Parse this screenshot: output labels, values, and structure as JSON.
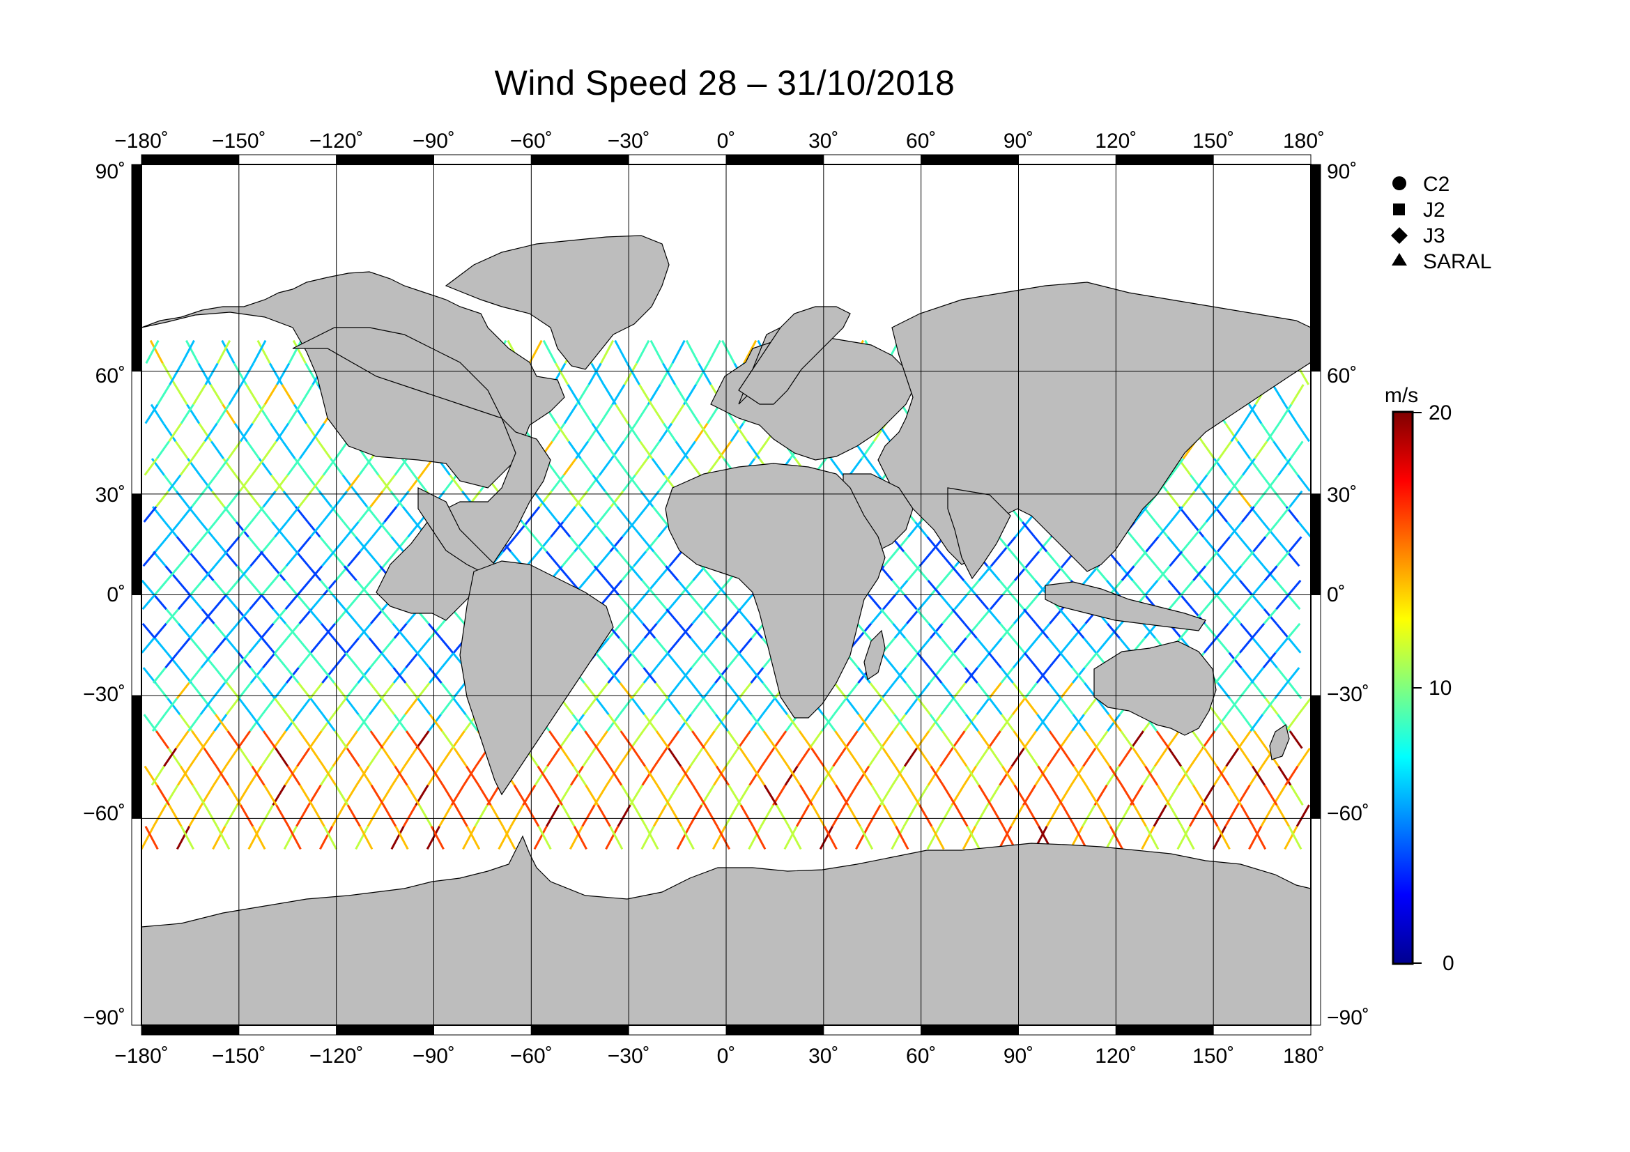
{
  "title": "Wind Speed 28 – 31/10/2018",
  "map": {
    "lon_ticks": [
      "−180˚",
      "−150˚",
      "−120˚",
      "−90˚",
      "−60˚",
      "−30˚",
      "0˚",
      "30˚",
      "60˚",
      "90˚",
      "120˚",
      "150˚",
      "180˚"
    ],
    "lat_ticks_left": [
      "90˚",
      "60˚",
      "30˚",
      "0˚",
      "−30˚",
      "−60˚",
      "−90˚"
    ],
    "lat_ticks_right": [
      "90˚",
      "60˚",
      "30˚",
      "0˚",
      "−30˚",
      "−60˚",
      "−90˚"
    ],
    "lon_range": [
      -180,
      180
    ],
    "lat_range": [
      -90,
      90
    ],
    "graticule_step_deg": 30,
    "land_color": "#bdbdbd",
    "ocean_color": "#ffffff",
    "track_colors": [
      "#00008f",
      "#0040ff",
      "#00bfff",
      "#40ffbf",
      "#bfff40",
      "#ffbf00",
      "#ff4000",
      "#8f0000"
    ]
  },
  "legend": {
    "items": [
      {
        "symbol": "circle",
        "label": "C2"
      },
      {
        "symbol": "square",
        "label": "J2"
      },
      {
        "symbol": "diamond",
        "label": "J3"
      },
      {
        "symbol": "triangle",
        "label": "SARAL"
      }
    ]
  },
  "colorbar": {
    "unit": "m/s",
    "min": 0,
    "max": 20,
    "tick_labels": [
      "20",
      "10",
      "0"
    ],
    "colormap": "jet"
  }
}
